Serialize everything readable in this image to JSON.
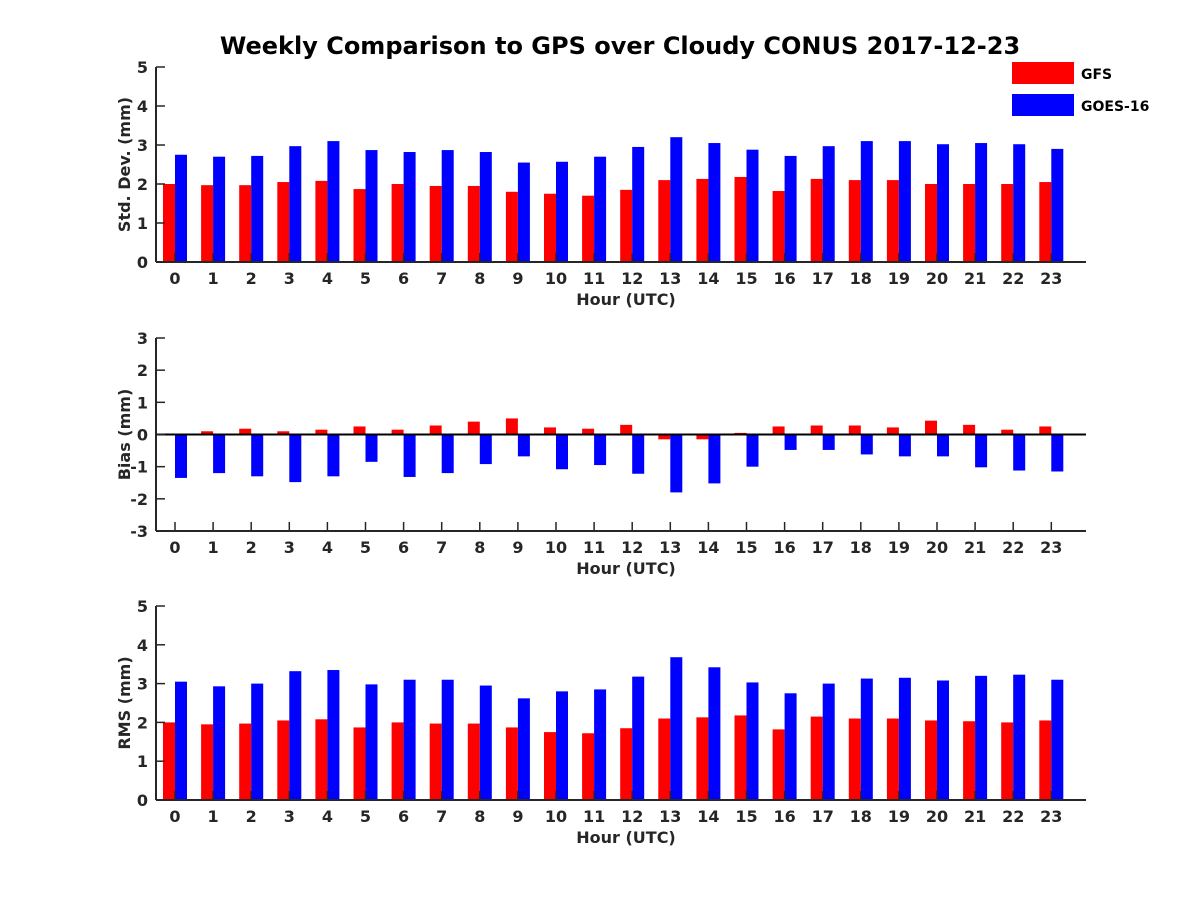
{
  "chart_data": {
    "type": "bar",
    "title": "Weekly Comparison to GPS over Cloudy CONUS 2017-12-23",
    "categories": [
      "0",
      "1",
      "2",
      "3",
      "4",
      "5",
      "6",
      "7",
      "8",
      "9",
      "10",
      "11",
      "12",
      "13",
      "14",
      "15",
      "16",
      "17",
      "18",
      "19",
      "20",
      "21",
      "22",
      "23"
    ],
    "legend": {
      "placement": "top-right",
      "entries": [
        {
          "name": "GFS",
          "color": "#ff0000"
        },
        {
          "name": "GOES-16",
          "color": "#0000ff"
        }
      ]
    },
    "panels": [
      {
        "ylabel": "Std. Dev. (mm)",
        "xlabel": "Hour (UTC)",
        "ylim": [
          0,
          5
        ],
        "yticks": [
          "0",
          "1",
          "2",
          "3",
          "4",
          "5"
        ],
        "series": [
          {
            "name": "GFS",
            "color": "#ff0000",
            "values": [
              2.0,
              1.97,
              1.97,
              2.05,
              2.08,
              1.87,
              2.0,
              1.95,
              1.95,
              1.8,
              1.75,
              1.7,
              1.85,
              2.1,
              2.13,
              2.18,
              1.82,
              2.13,
              2.1,
              2.1,
              2.0,
              2.0,
              2.0,
              2.05
            ]
          },
          {
            "name": "GOES-16",
            "color": "#0000ff",
            "values": [
              2.75,
              2.7,
              2.72,
              2.97,
              3.1,
              2.87,
              2.82,
              2.87,
              2.82,
              2.55,
              2.57,
              2.7,
              2.95,
              3.2,
              3.05,
              2.88,
              2.72,
              2.97,
              3.1,
              3.1,
              3.02,
              3.05,
              3.02,
              2.9
            ]
          }
        ]
      },
      {
        "ylabel": "Bias (mm)",
        "xlabel": "Hour (UTC)",
        "ylim": [
          -3,
          3
        ],
        "yticks": [
          "-3",
          "-2",
          "-1",
          "0",
          "1",
          "2",
          "3"
        ],
        "series": [
          {
            "name": "GFS",
            "color": "#ff0000",
            "values": [
              0.02,
              0.1,
              0.18,
              0.1,
              0.15,
              0.25,
              0.15,
              0.28,
              0.4,
              0.5,
              0.22,
              0.18,
              0.3,
              -0.15,
              -0.15,
              0.05,
              0.25,
              0.28,
              0.28,
              0.22,
              0.43,
              0.3,
              0.15,
              0.25
            ]
          },
          {
            "name": "GOES-16",
            "color": "#0000ff",
            "values": [
              -1.35,
              -1.2,
              -1.3,
              -1.48,
              -1.3,
              -0.85,
              -1.32,
              -1.2,
              -0.92,
              -0.68,
              -1.08,
              -0.95,
              -1.22,
              -1.8,
              -1.52,
              -1.0,
              -0.48,
              -0.48,
              -0.62,
              -0.68,
              -0.68,
              -1.02,
              -1.12,
              -1.15
            ]
          }
        ]
      },
      {
        "ylabel": "RMS (mm)",
        "xlabel": "Hour (UTC)",
        "ylim": [
          0,
          5
        ],
        "yticks": [
          "0",
          "1",
          "2",
          "3",
          "4",
          "5"
        ],
        "series": [
          {
            "name": "GFS",
            "color": "#ff0000",
            "values": [
              2.0,
              1.95,
              1.97,
              2.05,
              2.08,
              1.87,
              2.0,
              1.97,
              1.97,
              1.87,
              1.75,
              1.72,
              1.85,
              2.1,
              2.13,
              2.18,
              1.82,
              2.15,
              2.1,
              2.1,
              2.05,
              2.03,
              2.0,
              2.05
            ]
          },
          {
            "name": "GOES-16",
            "color": "#0000ff",
            "values": [
              3.05,
              2.93,
              3.0,
              3.32,
              3.35,
              2.98,
              3.1,
              3.1,
              2.95,
              2.62,
              2.8,
              2.85,
              3.18,
              3.68,
              3.42,
              3.03,
              2.75,
              3.0,
              3.13,
              3.15,
              3.08,
              3.2,
              3.23,
              3.1
            ]
          }
        ]
      }
    ]
  }
}
